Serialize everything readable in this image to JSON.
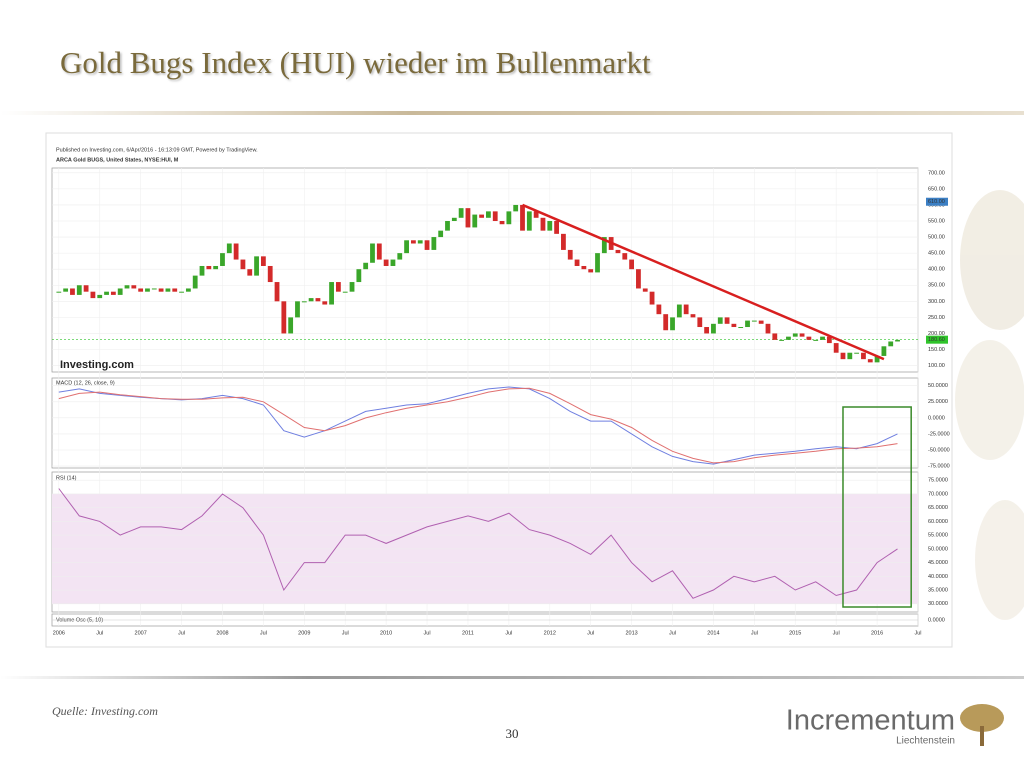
{
  "header": {
    "title": "Gold Bugs Index (HUI) wieder im Bullenmarkt"
  },
  "footer": {
    "source": "Quelle: Investing.com",
    "page": "30",
    "logo": "Incrementum",
    "logo_sub": "Liechtenstein"
  },
  "chart_data": {
    "type": "candlestick",
    "published": "Published on Investing.com, 6/Apr/2016 - 16:13:09 GMT, Powered by TradingView.",
    "instrument": "ARCA Gold BUGS, United States, NYSE:HUI, M",
    "brand": "Investing.com",
    "xlim": [
      "2005-12",
      "2016-07"
    ],
    "xticks": [
      {
        "value": "2006-01",
        "label": "2006"
      },
      {
        "value": "2006-07",
        "label": "Jul"
      },
      {
        "value": "2007-01",
        "label": "2007"
      },
      {
        "value": "2007-07",
        "label": "Jul"
      },
      {
        "value": "2008-01",
        "label": "2008"
      },
      {
        "value": "2008-07",
        "label": "Jul"
      },
      {
        "value": "2009-01",
        "label": "2009"
      },
      {
        "value": "2009-07",
        "label": "Jul"
      },
      {
        "value": "2010-01",
        "label": "2010"
      },
      {
        "value": "2010-07",
        "label": "Jul"
      },
      {
        "value": "2011-01",
        "label": "2011"
      },
      {
        "value": "2011-07",
        "label": "Jul"
      },
      {
        "value": "2012-01",
        "label": "2012"
      },
      {
        "value": "2012-07",
        "label": "Jul"
      },
      {
        "value": "2013-01",
        "label": "2013"
      },
      {
        "value": "2013-07",
        "label": "Jul"
      },
      {
        "value": "2014-01",
        "label": "2014"
      },
      {
        "value": "2014-07",
        "label": "Jul"
      },
      {
        "value": "2015-01",
        "label": "2015"
      },
      {
        "value": "2015-07",
        "label": "Jul"
      },
      {
        "value": "2016-01",
        "label": "2016"
      },
      {
        "value": "2016-07",
        "label": "Jul"
      }
    ],
    "price": {
      "ylim": [
        80,
        715
      ],
      "yticks": [
        {
          "value": 100,
          "label": "100.00"
        },
        {
          "value": 150,
          "label": "150.00"
        },
        {
          "value": 200,
          "label": "200.00"
        },
        {
          "value": 250,
          "label": "250.00"
        },
        {
          "value": 300,
          "label": "300.00"
        },
        {
          "value": 350,
          "label": "350.00"
        },
        {
          "value": 400,
          "label": "400.00"
        },
        {
          "value": 450,
          "label": "450.00"
        },
        {
          "value": 500,
          "label": "500.00"
        },
        {
          "value": 550,
          "label": "550.00"
        },
        {
          "value": 600,
          "label": "600.00"
        },
        {
          "value": 650,
          "label": "650.00"
        },
        {
          "value": 700,
          "label": "700.00"
        }
      ],
      "up_color": "#3aa62a",
      "down_color": "#d32a2a",
      "x": [
        "2006-01",
        "2006-02",
        "2006-03",
        "2006-04",
        "2006-05",
        "2006-06",
        "2006-07",
        "2006-08",
        "2006-09",
        "2006-10",
        "2006-11",
        "2006-12",
        "2007-01",
        "2007-02",
        "2007-03",
        "2007-04",
        "2007-05",
        "2007-06",
        "2007-07",
        "2007-08",
        "2007-09",
        "2007-10",
        "2007-11",
        "2007-12",
        "2008-01",
        "2008-02",
        "2008-03",
        "2008-04",
        "2008-05",
        "2008-06",
        "2008-07",
        "2008-08",
        "2008-09",
        "2008-10",
        "2008-11",
        "2008-12",
        "2009-01",
        "2009-02",
        "2009-03",
        "2009-04",
        "2009-05",
        "2009-06",
        "2009-07",
        "2009-08",
        "2009-09",
        "2009-10",
        "2009-11",
        "2009-12",
        "2010-01",
        "2010-02",
        "2010-03",
        "2010-04",
        "2010-05",
        "2010-06",
        "2010-07",
        "2010-08",
        "2010-09",
        "2010-10",
        "2010-11",
        "2010-12",
        "2011-01",
        "2011-02",
        "2011-03",
        "2011-04",
        "2011-05",
        "2011-06",
        "2011-07",
        "2011-08",
        "2011-09",
        "2011-10",
        "2011-11",
        "2011-12",
        "2012-01",
        "2012-02",
        "2012-03",
        "2012-04",
        "2012-05",
        "2012-06",
        "2012-07",
        "2012-08",
        "2012-09",
        "2012-10",
        "2012-11",
        "2012-12",
        "2013-01",
        "2013-02",
        "2013-03",
        "2013-04",
        "2013-05",
        "2013-06",
        "2013-07",
        "2013-08",
        "2013-09",
        "2013-10",
        "2013-11",
        "2013-12",
        "2014-01",
        "2014-02",
        "2014-03",
        "2014-04",
        "2014-05",
        "2014-06",
        "2014-07",
        "2014-08",
        "2014-09",
        "2014-10",
        "2014-11",
        "2014-12",
        "2015-01",
        "2015-02",
        "2015-03",
        "2015-04",
        "2015-05",
        "2015-06",
        "2015-07",
        "2015-08",
        "2015-09",
        "2015-10",
        "2015-11",
        "2015-12",
        "2016-01",
        "2016-02",
        "2016-03",
        "2016-04"
      ],
      "values": [
        330,
        340,
        320,
        350,
        330,
        310,
        320,
        330,
        320,
        340,
        350,
        340,
        330,
        340,
        340,
        330,
        340,
        330,
        330,
        340,
        380,
        410,
        400,
        410,
        450,
        480,
        430,
        400,
        380,
        440,
        410,
        360,
        300,
        200,
        250,
        300,
        300,
        310,
        300,
        290,
        360,
        330,
        330,
        360,
        400,
        420,
        480,
        430,
        410,
        430,
        450,
        490,
        480,
        490,
        460,
        500,
        520,
        550,
        560,
        590,
        530,
        570,
        560,
        580,
        550,
        540,
        580,
        600,
        520,
        580,
        560,
        520,
        550,
        510,
        460,
        430,
        410,
        400,
        390,
        450,
        500,
        460,
        450,
        430,
        400,
        340,
        330,
        290,
        260,
        210,
        250,
        290,
        260,
        250,
        220,
        200,
        230,
        250,
        230,
        220,
        220,
        240,
        240,
        230,
        200,
        180,
        180,
        190,
        200,
        190,
        180,
        180,
        190,
        170,
        140,
        120,
        140,
        140,
        120,
        110,
        130,
        160,
        175,
        180
      ],
      "marker": {
        "value": 610,
        "label": "610.00",
        "color": "#3b7fc4"
      },
      "last": {
        "value": 180.6,
        "label": "180.60",
        "color": "#2fc42a"
      }
    },
    "trendline": {
      "x": [
        "2011-09",
        "2016-02"
      ],
      "values": [
        600,
        120
      ],
      "color": "#d81f1f"
    },
    "macd": {
      "title": "MACD (12, 26, close, 9)",
      "ylim": [
        -78,
        62
      ],
      "yticks": [
        {
          "value": 50,
          "label": "50.0000"
        },
        {
          "value": 25,
          "label": "25.0000"
        },
        {
          "value": 0,
          "label": "0.0000"
        },
        {
          "value": -25,
          "label": "-25.0000"
        },
        {
          "value": -50,
          "label": "-50.0000"
        },
        {
          "value": -75,
          "label": "-75.0000"
        }
      ],
      "x": [
        "2006-01",
        "2006-04",
        "2006-07",
        "2006-10",
        "2007-01",
        "2007-04",
        "2007-07",
        "2007-10",
        "2008-01",
        "2008-04",
        "2008-07",
        "2008-10",
        "2009-01",
        "2009-04",
        "2009-07",
        "2009-10",
        "2010-01",
        "2010-04",
        "2010-07",
        "2010-10",
        "2011-01",
        "2011-04",
        "2011-07",
        "2011-10",
        "2012-01",
        "2012-04",
        "2012-07",
        "2012-10",
        "2013-01",
        "2013-04",
        "2013-07",
        "2013-10",
        "2014-01",
        "2014-04",
        "2014-07",
        "2014-10",
        "2015-01",
        "2015-04",
        "2015-07",
        "2015-10",
        "2016-01",
        "2016-04"
      ],
      "series": [
        {
          "color": "#6f7fe0",
          "values": [
            40,
            45,
            38,
            35,
            32,
            30,
            28,
            30,
            35,
            30,
            20,
            -20,
            -30,
            -20,
            -5,
            10,
            15,
            20,
            22,
            30,
            38,
            45,
            48,
            45,
            30,
            10,
            -5,
            -5,
            -25,
            -45,
            -60,
            -68,
            -72,
            -65,
            -58,
            -55,
            -52,
            -48,
            -45,
            -48,
            -40,
            -25
          ]
        },
        {
          "color": "#e07070",
          "values": [
            30,
            38,
            40,
            36,
            33,
            30,
            29,
            29,
            31,
            32,
            25,
            5,
            -15,
            -20,
            -12,
            0,
            8,
            15,
            20,
            25,
            32,
            40,
            45,
            46,
            38,
            22,
            5,
            -2,
            -15,
            -35,
            -52,
            -63,
            -70,
            -68,
            -62,
            -58,
            -55,
            -52,
            -48,
            -47,
            -45,
            -40
          ]
        }
      ]
    },
    "rsi": {
      "title": "RSI (14)",
      "ylim": [
        27,
        78
      ],
      "band": [
        30,
        70
      ],
      "color": "#b060b0",
      "yticks": [
        {
          "value": 30,
          "label": "30.0000"
        },
        {
          "value": 35,
          "label": "35.0000"
        },
        {
          "value": 40,
          "label": "40.0000"
        },
        {
          "value": 45,
          "label": "45.0000"
        },
        {
          "value": 50,
          "label": "50.0000"
        },
        {
          "value": 55,
          "label": "55.0000"
        },
        {
          "value": 60,
          "label": "60.0000"
        },
        {
          "value": 65,
          "label": "65.0000"
        },
        {
          "value": 70,
          "label": "70.0000"
        },
        {
          "value": 75,
          "label": "75.0000"
        }
      ],
      "x": [
        "2006-01",
        "2006-04",
        "2006-07",
        "2006-10",
        "2007-01",
        "2007-04",
        "2007-07",
        "2007-10",
        "2008-01",
        "2008-04",
        "2008-07",
        "2008-10",
        "2009-01",
        "2009-04",
        "2009-07",
        "2009-10",
        "2010-01",
        "2010-04",
        "2010-07",
        "2010-10",
        "2011-01",
        "2011-04",
        "2011-07",
        "2011-10",
        "2012-01",
        "2012-04",
        "2012-07",
        "2012-10",
        "2013-01",
        "2013-04",
        "2013-07",
        "2013-10",
        "2014-01",
        "2014-04",
        "2014-07",
        "2014-10",
        "2015-01",
        "2015-04",
        "2015-07",
        "2015-10",
        "2016-01",
        "2016-04"
      ],
      "values": [
        72,
        62,
        60,
        55,
        58,
        58,
        57,
        62,
        70,
        65,
        55,
        35,
        45,
        45,
        55,
        55,
        52,
        55,
        58,
        60,
        62,
        60,
        63,
        57,
        55,
        52,
        48,
        55,
        45,
        38,
        42,
        32,
        35,
        40,
        38,
        40,
        35,
        38,
        33,
        35,
        45,
        50
      ]
    },
    "volume": {
      "title": "Volume Osc (5, 10)",
      "yticks": [
        {
          "value": 0,
          "label": "0.0000"
        }
      ]
    },
    "highlight": {
      "x": [
        "2015-08",
        "2016-06"
      ],
      "color": "#3a8a2a"
    }
  }
}
